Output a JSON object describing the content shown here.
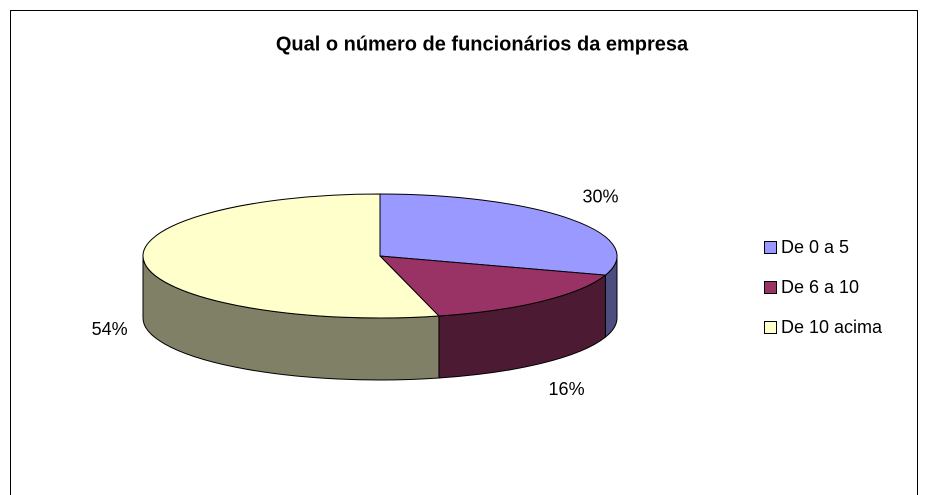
{
  "chart_data": {
    "type": "pie3d",
    "title": "Qual o número de funcionários da empresa",
    "categories": [
      "De 0 a 5",
      "De 6 a 10",
      "De 10 acima"
    ],
    "values": [
      30,
      16,
      54
    ],
    "value_labels": [
      "30%",
      "16%",
      "54%"
    ],
    "colors": [
      "#9999ff",
      "#993366",
      "#ffffcc"
    ],
    "legend": "right"
  }
}
